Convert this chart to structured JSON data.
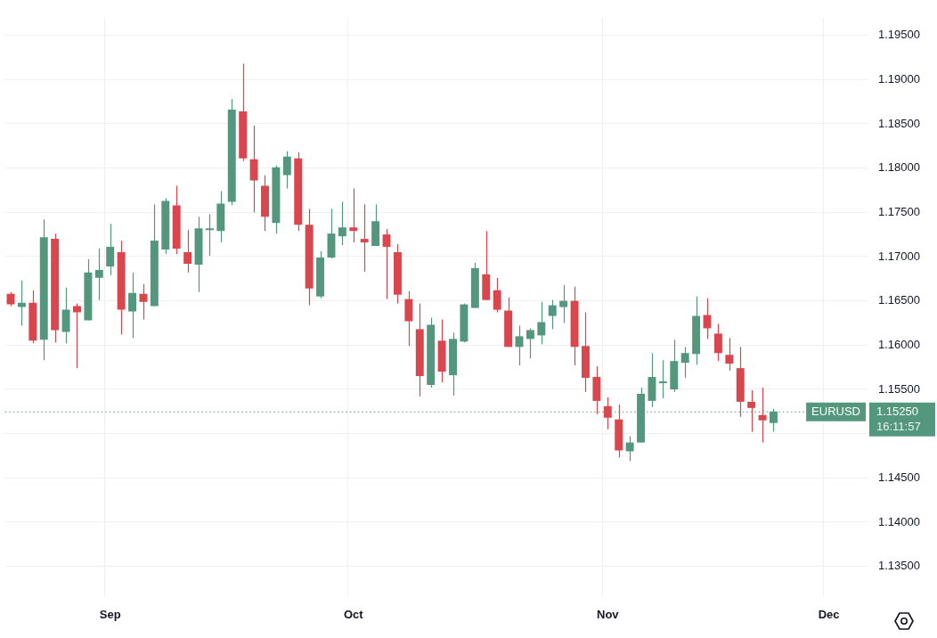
{
  "chart_data": {
    "type": "candlestick",
    "categories": [
      null,
      null,
      null,
      null,
      null,
      null,
      null,
      null,
      null,
      "Sep",
      null,
      null,
      null,
      null,
      null,
      null,
      null,
      null,
      null,
      null,
      null,
      null,
      null,
      null,
      null,
      null,
      null,
      null,
      null,
      null,
      null,
      "Oct",
      null,
      null,
      null,
      null,
      null,
      null,
      null,
      null,
      null,
      null,
      null,
      null,
      null,
      null,
      null,
      null,
      null,
      null,
      null,
      null,
      null,
      null,
      "Nov",
      null,
      null,
      null,
      null,
      null,
      null,
      null,
      null,
      null,
      null,
      null,
      null,
      null,
      null,
      null,
      null,
      null,
      null,
      null,
      "Dec",
      null,
      null,
      null
    ],
    "ohlc": [
      [
        1.1658,
        1.166,
        1.1644,
        1.1646
      ],
      [
        1.1643,
        1.1673,
        1.1622,
        1.1648
      ],
      [
        1.1648,
        1.1662,
        1.1602,
        1.1605
      ],
      [
        1.1606,
        1.1742,
        1.1583,
        1.1722
      ],
      [
        1.172,
        1.1726,
        1.1603,
        1.1617
      ],
      [
        1.1615,
        1.1665,
        1.1602,
        1.164
      ],
      [
        1.1644,
        1.1647,
        1.1574,
        1.1637
      ],
      [
        1.1628,
        1.1697,
        1.1628,
        1.1682
      ],
      [
        1.1676,
        1.1709,
        1.1651,
        1.1685
      ],
      [
        1.1689,
        1.1737,
        1.1679,
        1.1711
      ],
      [
        1.1705,
        1.1718,
        1.1612,
        1.164
      ],
      [
        1.1638,
        1.1682,
        1.1608,
        1.1659
      ],
      [
        1.1658,
        1.1669,
        1.1629,
        1.1649
      ],
      [
        1.1644,
        1.1759,
        1.1644,
        1.1718
      ],
      [
        1.1708,
        1.1766,
        1.1703,
        1.1763
      ],
      [
        1.1758,
        1.178,
        1.1703,
        1.1709
      ],
      [
        1.1705,
        1.173,
        1.1682,
        1.1692
      ],
      [
        1.1691,
        1.1745,
        1.166,
        1.1732
      ],
      [
        1.173,
        1.1748,
        1.1701,
        1.1732
      ],
      [
        1.1729,
        1.1774,
        1.1716,
        1.176
      ],
      [
        1.1762,
        1.1878,
        1.1758,
        1.1866
      ],
      [
        1.1864,
        1.1918,
        1.1808,
        1.1811
      ],
      [
        1.181,
        1.1848,
        1.175,
        1.1786
      ],
      [
        1.178,
        1.1792,
        1.1729,
        1.1745
      ],
      [
        1.1738,
        1.1803,
        1.1726,
        1.1801
      ],
      [
        1.1792,
        1.1819,
        1.1777,
        1.1813
      ],
      [
        1.1811,
        1.1818,
        1.1729,
        1.1736
      ],
      [
        1.1736,
        1.1754,
        1.1645,
        1.1664
      ],
      [
        1.1655,
        1.1706,
        1.1653,
        1.1699
      ],
      [
        1.1699,
        1.1754,
        1.1698,
        1.1726
      ],
      [
        1.1723,
        1.1762,
        1.1713,
        1.1733
      ],
      [
        1.1733,
        1.1777,
        1.1716,
        1.1729
      ],
      [
        1.172,
        1.1759,
        1.1683,
        1.1716
      ],
      [
        1.1712,
        1.1759,
        1.1712,
        1.174
      ],
      [
        1.1725,
        1.1731,
        1.1652,
        1.1711
      ],
      [
        1.1705,
        1.1714,
        1.1647,
        1.1657
      ],
      [
        1.1652,
        1.1661,
        1.1599,
        1.1627
      ],
      [
        1.1618,
        1.1647,
        1.1542,
        1.1565
      ],
      [
        1.1555,
        1.1631,
        1.1552,
        1.1623
      ],
      [
        1.1605,
        1.1629,
        1.1558,
        1.157
      ],
      [
        1.1566,
        1.1614,
        1.1543,
        1.1607
      ],
      [
        1.1604,
        1.1647,
        1.1603,
        1.1646
      ],
      [
        1.1642,
        1.1693,
        1.1642,
        1.1687
      ],
      [
        1.168,
        1.1729,
        1.1651,
        1.1651
      ],
      [
        1.1662,
        1.1676,
        1.1637,
        1.164
      ],
      [
        1.1639,
        1.1654,
        1.1598,
        1.1598
      ],
      [
        1.1598,
        1.1622,
        1.1577,
        1.161
      ],
      [
        1.1607,
        1.1619,
        1.1585,
        1.1617
      ],
      [
        1.1611,
        1.1649,
        1.1601,
        1.1626
      ],
      [
        1.1633,
        1.1651,
        1.1618,
        1.1645
      ],
      [
        1.1643,
        1.1668,
        1.1625,
        1.165
      ],
      [
        1.165,
        1.1666,
        1.1577,
        1.1598
      ],
      [
        1.1599,
        1.1637,
        1.1547,
        1.1563
      ],
      [
        1.1564,
        1.1576,
        1.1522,
        1.1537
      ],
      [
        1.1531,
        1.1541,
        1.1505,
        1.1518
      ],
      [
        1.1516,
        1.1533,
        1.1473,
        1.1481
      ],
      [
        1.148,
        1.1497,
        1.1469,
        1.149
      ],
      [
        1.149,
        1.1552,
        1.149,
        1.1545
      ],
      [
        1.1537,
        1.1591,
        1.153,
        1.1564
      ],
      [
        1.1557,
        1.1583,
        1.154,
        1.1559
      ],
      [
        1.155,
        1.1606,
        1.1547,
        1.1582
      ],
      [
        1.158,
        1.1598,
        1.1563,
        1.1591
      ],
      [
        1.159,
        1.1655,
        1.1578,
        1.1633
      ],
      [
        1.1634,
        1.1653,
        1.1607,
        1.1619
      ],
      [
        1.1613,
        1.1624,
        1.1582,
        1.1591
      ],
      [
        1.1589,
        1.1608,
        1.1571,
        1.1579
      ],
      [
        1.1574,
        1.1598,
        1.1519,
        1.1536
      ],
      [
        1.1536,
        1.1549,
        1.1502,
        1.1529
      ],
      [
        1.1521,
        1.1552,
        1.149,
        1.1515
      ],
      [
        1.1512,
        1.1528,
        1.1502,
        1.1525
      ],
      null,
      null,
      null,
      null,
      null,
      null,
      null,
      null
    ],
    "colors": [
      "#d9464e",
      "#53977f",
      "#d9464e",
      "#53977f",
      "#d9464e",
      "#53977f",
      "#d9464e",
      "#53977f",
      "#53977f",
      "#53977f",
      "#d9464e",
      "#53977f",
      "#d9464e",
      "#53977f",
      "#53977f",
      "#d9464e",
      "#d9464e",
      "#53977f",
      "#53977f",
      "#53977f",
      "#53977f",
      "#d9464e",
      "#d9464e",
      "#d9464e",
      "#53977f",
      "#53977f",
      "#d9464e",
      "#d9464e",
      "#53977f",
      "#53977f",
      "#53977f",
      "#d9464e",
      "#d9464e",
      "#53977f",
      "#d9464e",
      "#d9464e",
      "#d9464e",
      "#d9464e",
      "#53977f",
      "#d9464e",
      "#53977f",
      "#53977f",
      "#53977f",
      "#d9464e",
      "#d9464e",
      "#d9464e",
      "#53977f",
      "#53977f",
      "#53977f",
      "#53977f",
      "#53977f",
      "#d9464e",
      "#d9464e",
      "#d9464e",
      "#d9464e",
      "#d9464e",
      "#53977f",
      "#53977f",
      "#53977f",
      "#53977f",
      "#53977f",
      "#53977f",
      "#53977f",
      "#d9464e",
      "#d9464e",
      "#d9464e",
      "#d9464e",
      "#d9464e",
      "#d9464e",
      "#53977f",
      null,
      null,
      null,
      null,
      null,
      null,
      null,
      null
    ],
    "ylim": [
      1.1315,
      1.197
    ],
    "yticks": [
      {
        "value": 1.135,
        "label": "1.13500"
      },
      {
        "value": 1.14,
        "label": "1.14000"
      },
      {
        "value": 1.145,
        "label": "1.14500"
      },
      {
        "value": 1.15,
        "label": null
      },
      {
        "value": 1.155,
        "label": "1.15500"
      },
      {
        "value": 1.16,
        "label": "1.16000"
      },
      {
        "value": 1.165,
        "label": "1.16500"
      },
      {
        "value": 1.17,
        "label": "1.17000"
      },
      {
        "value": 1.175,
        "label": "1.17500"
      },
      {
        "value": 1.18,
        "label": "1.18000"
      },
      {
        "value": 1.185,
        "label": "1.18500"
      },
      {
        "value": 1.19,
        "label": "1.19000"
      },
      {
        "value": 1.195,
        "label": "1.19500"
      }
    ],
    "grid": true,
    "ref_lines": [
      {
        "axis": "y",
        "value": 1.1525,
        "label": "EURUSD",
        "color": "#53977f",
        "line_style": "dotted"
      }
    ],
    "annotations": [
      "1.15250",
      "16:11:57"
    ]
  }
}
